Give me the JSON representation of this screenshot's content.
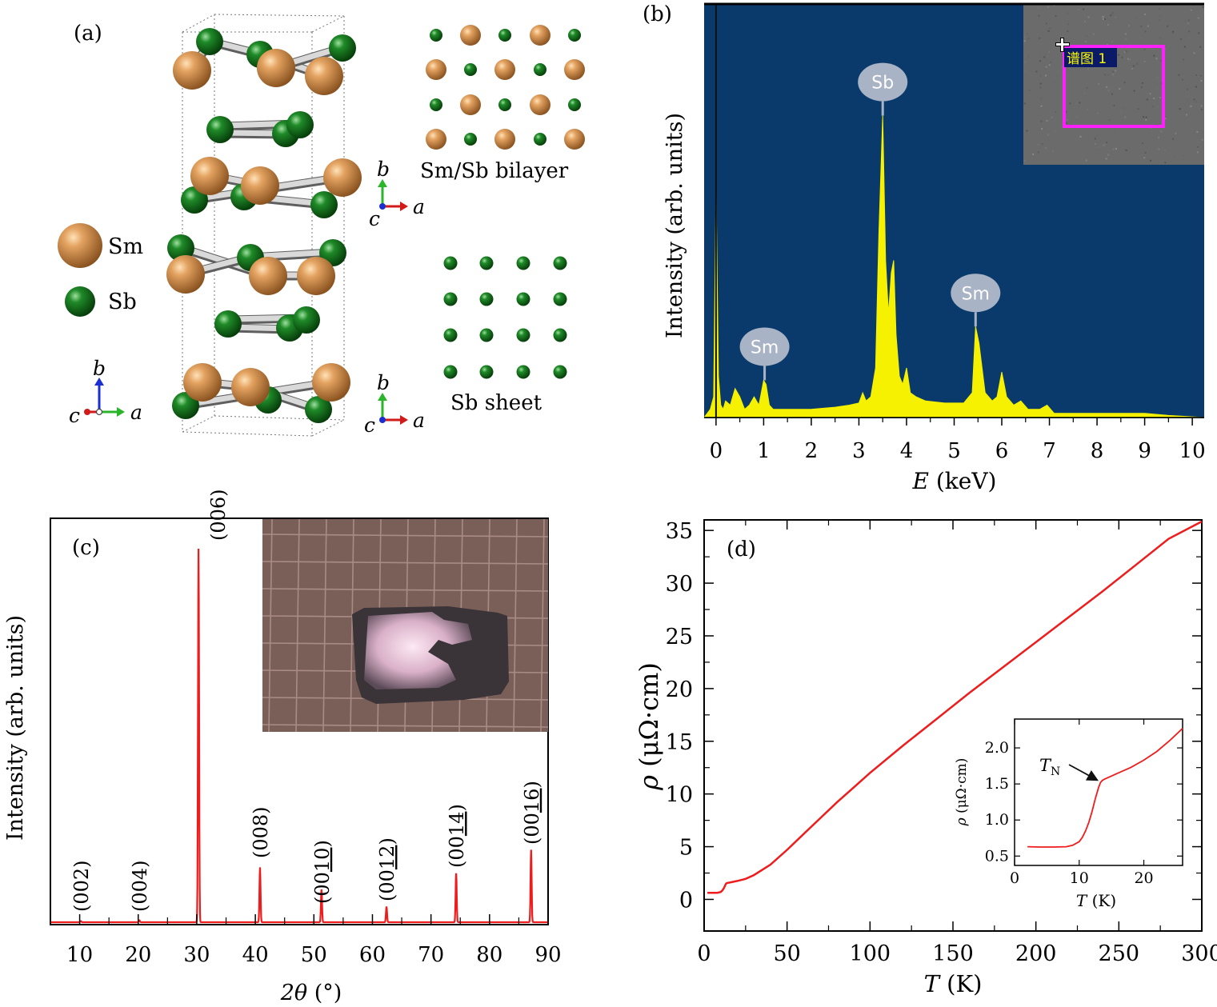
{
  "panel_a": {
    "label": "(a)",
    "legend": [
      {
        "name": "Sm",
        "color": "#d8924a"
      },
      {
        "name": "Sb",
        "color": "#167a1f"
      }
    ],
    "bilayer_label": "Sm/Sb bilayer",
    "sheet_label": "Sb sheet",
    "axes": {
      "b": "b",
      "a": "a",
      "c": "c"
    }
  },
  "chart_data": [
    {
      "id": "b",
      "label": "(b)",
      "type": "area",
      "xlabel_var": "E",
      "xlabel_unit": " (keV)",
      "ylabel": "Intensity (arb. units)",
      "xlim": [
        -0.25,
        10.25
      ],
      "xticks": [
        0,
        1,
        2,
        3,
        4,
        5,
        6,
        7,
        8,
        9,
        10
      ],
      "background": "#0a3a6b",
      "fill": "#f5f100",
      "x": [
        -0.25,
        -0.12,
        -0.05,
        0.0,
        0.05,
        0.1,
        0.15,
        0.2,
        0.3,
        0.4,
        0.5,
        0.6,
        0.7,
        0.8,
        0.9,
        1.0,
        1.05,
        1.12,
        1.2,
        1.4,
        1.6,
        2.0,
        2.5,
        2.8,
        3.0,
        3.08,
        3.15,
        3.25,
        3.35,
        3.42,
        3.5,
        3.56,
        3.62,
        3.68,
        3.73,
        3.78,
        3.85,
        3.92,
        4.0,
        4.08,
        4.2,
        4.4,
        4.8,
        5.2,
        5.38,
        5.45,
        5.52,
        5.65,
        5.8,
        5.9,
        6.0,
        6.1,
        6.25,
        6.4,
        6.55,
        6.8,
        6.95,
        7.1,
        7.5,
        8.0,
        9.0,
        9.5,
        10.25
      ],
      "y": [
        0.0,
        0.02,
        0.05,
        0.56,
        0.1,
        0.03,
        0.02,
        0.04,
        0.03,
        0.07,
        0.05,
        0.02,
        0.03,
        0.05,
        0.03,
        0.09,
        0.08,
        0.03,
        0.02,
        0.02,
        0.02,
        0.02,
        0.025,
        0.03,
        0.035,
        0.06,
        0.04,
        0.05,
        0.12,
        0.45,
        0.73,
        0.38,
        0.25,
        0.35,
        0.38,
        0.2,
        0.1,
        0.08,
        0.12,
        0.06,
        0.05,
        0.04,
        0.035,
        0.035,
        0.06,
        0.22,
        0.18,
        0.06,
        0.04,
        0.05,
        0.11,
        0.05,
        0.03,
        0.04,
        0.02,
        0.02,
        0.03,
        0.01,
        0.01,
        0.01,
        0.01,
        0.005,
        0.0
      ],
      "peak_labels": [
        {
          "text": "Sm",
          "x": 1.02,
          "y": 0.09
        },
        {
          "text": "Sb",
          "x": 3.5,
          "y": 0.73
        },
        {
          "text": "Sm",
          "x": 5.45,
          "y": 0.22
        }
      ],
      "inset_label": "谱图 1"
    },
    {
      "id": "c",
      "label": "(c)",
      "type": "line",
      "xlabel_var": "2θ",
      "xlabel_unit": " (°)",
      "ylabel": "Intensity (arb. units)",
      "xlim": [
        5,
        90
      ],
      "xticks": [
        10,
        20,
        30,
        40,
        50,
        60,
        70,
        80,
        90
      ],
      "color": "#ee1c1c",
      "peaks": [
        {
          "x": 10.2,
          "height": 0.003,
          "label": "(002)",
          "underline": ""
        },
        {
          "x": 20.2,
          "height": 0.005,
          "label": "(004)",
          "underline": ""
        },
        {
          "x": 30.3,
          "height": 1.0,
          "label": "(006)",
          "underline": ""
        },
        {
          "x": 40.8,
          "height": 0.147,
          "label": "(008)",
          "underline": ""
        },
        {
          "x": 51.3,
          "height": 0.088,
          "label": "(0010)",
          "underline": "10"
        },
        {
          "x": 62.4,
          "height": 0.042,
          "label": "(0012)",
          "underline": "12"
        },
        {
          "x": 74.3,
          "height": 0.131,
          "label": "(0014)",
          "underline": "14"
        },
        {
          "x": 87.1,
          "height": 0.194,
          "label": "(0016)",
          "underline": "16"
        }
      ]
    },
    {
      "id": "d",
      "label": "(d)",
      "type": "line",
      "xlabel_var": "T",
      "xlabel_unit": " (K)",
      "ylabel_var": "ρ",
      "ylabel_unit": " (μΩ·cm)",
      "xlim": [
        0,
        300
      ],
      "ylim": [
        -3,
        36
      ],
      "xticks": [
        0,
        50,
        100,
        150,
        200,
        250,
        300
      ],
      "yticks": [
        0,
        5,
        10,
        15,
        20,
        25,
        30,
        35
      ],
      "color": "#ee1c1c",
      "x": [
        2,
        5,
        8,
        10,
        11,
        12,
        13,
        13.5,
        14,
        16,
        20,
        25,
        30,
        40,
        50,
        60,
        70,
        80,
        90,
        100,
        120,
        140,
        160,
        180,
        200,
        220,
        240,
        260,
        280,
        300
      ],
      "y": [
        0.62,
        0.62,
        0.63,
        0.7,
        0.85,
        1.1,
        1.45,
        1.53,
        1.56,
        1.62,
        1.75,
        1.95,
        2.3,
        3.3,
        4.7,
        6.2,
        7.7,
        9.2,
        10.6,
        12.0,
        14.6,
        17.1,
        19.6,
        22.0,
        24.4,
        26.8,
        29.2,
        31.7,
        34.2,
        36.8
      ],
      "inset": {
        "xlabel_var": "T",
        "xlabel_unit": " (K)",
        "ylabel_var": "ρ",
        "ylabel_unit": " (μΩ·cm)",
        "xlim": [
          0,
          26
        ],
        "ylim": [
          0.37,
          2.4
        ],
        "xticks": [
          0,
          10,
          20
        ],
        "yticks": [
          0.5,
          1.0,
          1.5,
          2.0
        ],
        "ytick_labels": [
          "0.5",
          "1.0",
          "1.5",
          "2.0"
        ],
        "x": [
          2,
          4,
          6,
          8,
          9,
          10,
          10.5,
          11,
          11.5,
          12,
          12.5,
          13,
          13.3,
          13.6,
          14,
          15,
          16,
          18,
          20,
          22,
          24,
          26
        ],
        "y": [
          0.63,
          0.625,
          0.625,
          0.63,
          0.65,
          0.7,
          0.76,
          0.85,
          0.97,
          1.12,
          1.3,
          1.45,
          1.52,
          1.55,
          1.57,
          1.61,
          1.65,
          1.73,
          1.83,
          1.95,
          2.1,
          2.27
        ],
        "annotation": {
          "var": "T",
          "sub": "N",
          "x": 13.3,
          "y": 1.52
        }
      }
    }
  ]
}
